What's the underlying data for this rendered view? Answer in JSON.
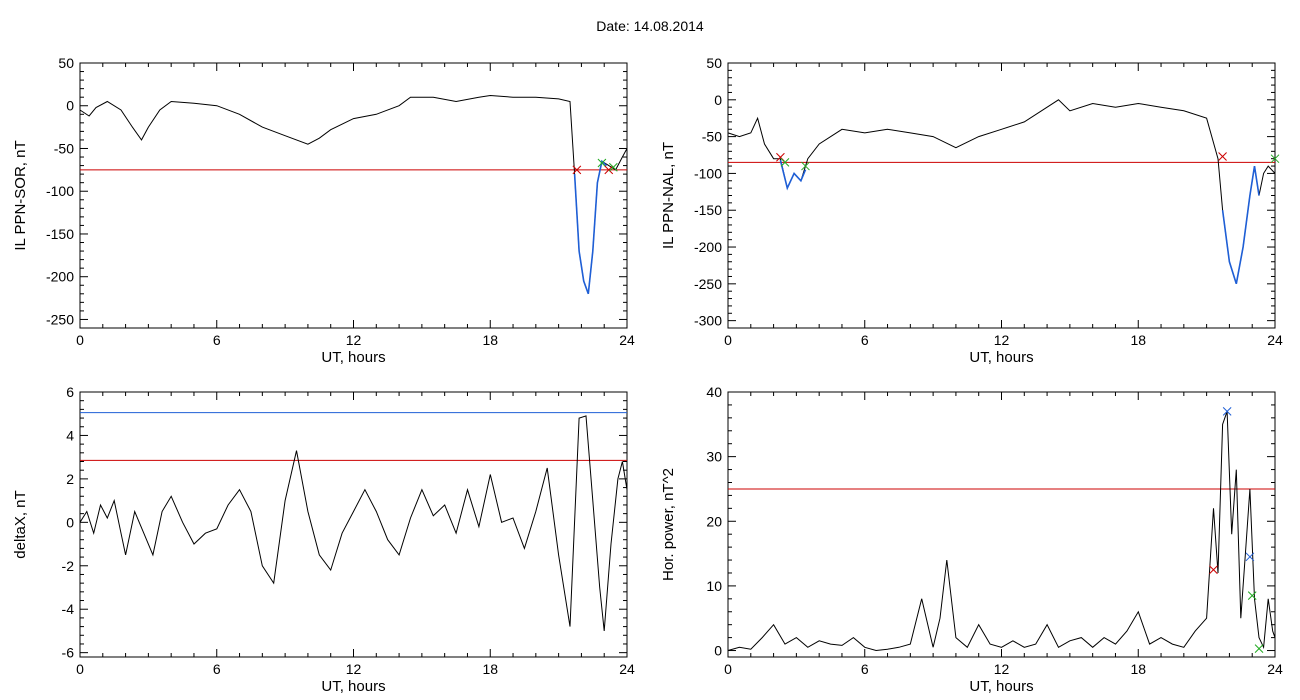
{
  "figure_title": "Date:  14.08.2014",
  "chart_data": [
    {
      "type": "line",
      "ylabel": "IL PPN-SOR, nT",
      "xlabel": "UT, hours",
      "xlim": [
        0,
        24
      ],
      "ylim": [
        -260,
        50
      ],
      "xticks": [
        0,
        6,
        12,
        18,
        24
      ],
      "yticks": [
        50,
        0,
        -50,
        -100,
        -150,
        -200,
        -250
      ],
      "threshold": {
        "value": -75,
        "color": "#cc0000"
      },
      "series": [
        {
          "color": "#000000",
          "x": [
            0,
            0.4,
            0.7,
            1.2,
            1.8,
            2.3,
            2.7,
            3.0,
            3.5,
            4.0,
            5.0,
            6.0,
            7.0,
            8.0,
            9.0,
            10.0,
            10.5,
            11.0,
            12.0,
            13.0,
            14.0,
            14.5,
            15.5,
            16.5,
            17.5,
            18.0,
            19.0,
            20.0,
            21.0,
            21.5,
            21.7,
            21.9,
            22.1,
            22.3,
            22.5,
            22.7,
            22.9,
            23.2,
            23.5,
            23.8,
            24.0
          ],
          "y": [
            -5,
            -12,
            -2,
            5,
            -5,
            -25,
            -40,
            -25,
            -5,
            5,
            3,
            0,
            -10,
            -25,
            -35,
            -45,
            -38,
            -28,
            -15,
            -10,
            0,
            10,
            10,
            5,
            10,
            12,
            10,
            10,
            8,
            5,
            -80,
            -170,
            -205,
            -220,
            -170,
            -90,
            -65,
            -70,
            -75,
            -60,
            -50
          ]
        },
        {
          "color": "#1f5fd6",
          "x": [
            21.7,
            21.9,
            22.1,
            22.3,
            22.5,
            22.7,
            22.9,
            23.1
          ],
          "y": [
            -80,
            -170,
            -205,
            -220,
            -170,
            -90,
            -65,
            -70
          ]
        }
      ],
      "markers": [
        {
          "x": 21.8,
          "y": -75,
          "color": "#cc0000"
        },
        {
          "x": 22.9,
          "y": -67,
          "color": "#22aa22"
        },
        {
          "x": 23.2,
          "y": -75,
          "color": "#cc0000"
        },
        {
          "x": 23.4,
          "y": -72,
          "color": "#22aa22"
        }
      ]
    },
    {
      "type": "line",
      "ylabel": "IL PPN-NAL, nT",
      "xlabel": "UT, hours",
      "xlim": [
        0,
        24
      ],
      "ylim": [
        -310,
        50
      ],
      "xticks": [
        0,
        6,
        12,
        18,
        24
      ],
      "yticks": [
        50,
        0,
        -50,
        -100,
        -150,
        -200,
        -250,
        -300
      ],
      "threshold": {
        "value": -85,
        "color": "#cc0000"
      },
      "series": [
        {
          "color": "#000000",
          "x": [
            0,
            0.5,
            1.0,
            1.3,
            1.6,
            2.0,
            2.3,
            2.6,
            2.9,
            3.2,
            3.5,
            4.0,
            5.0,
            6.0,
            7.0,
            8.0,
            9.0,
            10.0,
            11.0,
            12.0,
            13.0,
            14.0,
            14.5,
            15.0,
            16.0,
            17.0,
            18.0,
            19.0,
            20.0,
            21.0,
            21.5,
            21.7,
            22.0,
            22.3,
            22.6,
            22.9,
            23.1,
            23.3,
            23.5,
            23.7,
            24.0
          ],
          "y": [
            -45,
            -50,
            -45,
            -25,
            -60,
            -80,
            -80,
            -120,
            -100,
            -110,
            -80,
            -60,
            -40,
            -45,
            -40,
            -45,
            -50,
            -65,
            -50,
            -40,
            -30,
            -10,
            0,
            -15,
            -5,
            -10,
            -5,
            -10,
            -15,
            -25,
            -80,
            -150,
            -220,
            -250,
            -200,
            -130,
            -90,
            -130,
            -100,
            -90,
            -100
          ]
        },
        {
          "color": "#1f5fd6",
          "x": [
            2.3,
            2.6,
            2.9,
            3.2,
            3.4
          ],
          "y": [
            -82,
            -120,
            -100,
            -110,
            -95
          ]
        },
        {
          "color": "#1f5fd6",
          "x": [
            21.7,
            22.0,
            22.3,
            22.6,
            22.9,
            23.1,
            23.3
          ],
          "y": [
            -150,
            -220,
            -250,
            -200,
            -130,
            -90,
            -130
          ]
        }
      ],
      "markers": [
        {
          "x": 2.3,
          "y": -78,
          "color": "#cc0000"
        },
        {
          "x": 2.5,
          "y": -85,
          "color": "#22aa22"
        },
        {
          "x": 3.4,
          "y": -90,
          "color": "#22aa22"
        },
        {
          "x": 21.7,
          "y": -77,
          "color": "#cc0000"
        },
        {
          "x": 24.0,
          "y": -80,
          "color": "#22aa22"
        }
      ]
    },
    {
      "type": "line",
      "ylabel": "deltaX, nT",
      "xlabel": "UT, hours",
      "xlim": [
        0,
        24
      ],
      "ylim": [
        -6.2,
        6
      ],
      "xticks": [
        0,
        6,
        12,
        18,
        24
      ],
      "yticks": [
        6,
        4,
        2,
        0,
        -2,
        -4,
        -6
      ],
      "threshold": {
        "value": 2.85,
        "color": "#cc0000"
      },
      "threshold2": {
        "value": 5.05,
        "color": "#1f5fd6"
      },
      "series": [
        {
          "color": "#000000",
          "x": [
            0,
            0.3,
            0.6,
            0.9,
            1.2,
            1.5,
            1.8,
            2.0,
            2.4,
            2.8,
            3.2,
            3.6,
            4.0,
            4.5,
            5.0,
            5.5,
            6.0,
            6.5,
            7.0,
            7.5,
            8.0,
            8.5,
            9.0,
            9.5,
            10.0,
            10.5,
            11.0,
            11.5,
            12.0,
            12.5,
            13.0,
            13.5,
            14.0,
            14.5,
            15.0,
            15.5,
            16.0,
            16.5,
            17.0,
            17.5,
            18.0,
            18.5,
            19.0,
            19.5,
            20.0,
            20.5,
            21.0,
            21.5,
            21.9,
            22.2,
            22.5,
            22.8,
            23.0,
            23.3,
            23.6,
            23.8,
            24.0
          ],
          "y": [
            0,
            0.5,
            -0.5,
            0.8,
            0.2,
            1.0,
            -0.5,
            -1.5,
            0.5,
            -0.5,
            -1.5,
            0.5,
            1.2,
            0.0,
            -1.0,
            -0.5,
            -0.3,
            0.8,
            1.5,
            0.5,
            -2.0,
            -2.8,
            1.0,
            3.3,
            0.5,
            -1.5,
            -2.2,
            -0.5,
            0.5,
            1.5,
            0.5,
            -0.8,
            -1.5,
            0.2,
            1.5,
            0.3,
            0.8,
            -0.5,
            1.5,
            -0.2,
            2.2,
            0.0,
            0.2,
            -1.2,
            0.5,
            2.5,
            -1.5,
            -4.8,
            4.8,
            4.9,
            1.0,
            -3.0,
            -5.0,
            -1.0,
            2.0,
            2.8,
            1.5
          ]
        }
      ],
      "markers": []
    },
    {
      "type": "line",
      "ylabel": "Hor. power, nT^2",
      "xlabel": "UT, hours",
      "xlim": [
        0,
        24
      ],
      "ylim": [
        -1,
        40
      ],
      "xticks": [
        0,
        6,
        12,
        18,
        24
      ],
      "yticks": [
        40,
        30,
        20,
        10,
        0
      ],
      "threshold": {
        "value": 25,
        "color": "#cc0000"
      },
      "series": [
        {
          "color": "#000000",
          "x": [
            0,
            0.5,
            1.0,
            1.5,
            2.0,
            2.5,
            3.0,
            3.5,
            4.0,
            4.5,
            5.0,
            5.5,
            6.0,
            6.5,
            7.0,
            7.5,
            8.0,
            8.5,
            9.0,
            9.3,
            9.6,
            10.0,
            10.5,
            11.0,
            11.5,
            12.0,
            12.5,
            13.0,
            13.5,
            14.0,
            14.5,
            15.0,
            15.5,
            16.0,
            16.5,
            17.0,
            17.5,
            18.0,
            18.5,
            19.0,
            19.5,
            20.0,
            20.5,
            21.0,
            21.3,
            21.5,
            21.7,
            21.9,
            22.1,
            22.3,
            22.5,
            22.7,
            22.9,
            23.1,
            23.3,
            23.5,
            23.7,
            23.9,
            24.0
          ],
          "y": [
            0,
            0.5,
            0.2,
            2.0,
            4.0,
            1.0,
            2.0,
            0.5,
            1.5,
            1.0,
            0.8,
            2.0,
            0.5,
            0.0,
            0.2,
            0.5,
            1.0,
            8.0,
            0.5,
            5.0,
            14.0,
            2.0,
            0.5,
            4.0,
            1.0,
            0.5,
            1.5,
            0.5,
            1.0,
            4.0,
            0.5,
            1.5,
            2.0,
            0.5,
            2.0,
            1.0,
            3.0,
            6.0,
            1.0,
            2.0,
            1.0,
            0.5,
            3.0,
            5.0,
            22.0,
            12.0,
            35.0,
            37.0,
            18.0,
            28.0,
            5.0,
            15.0,
            25.0,
            8.0,
            2.0,
            0.5,
            8.0,
            3.0,
            2.0
          ]
        }
      ],
      "markers": [
        {
          "x": 21.3,
          "y": 12.5,
          "color": "#cc0000"
        },
        {
          "x": 21.9,
          "y": 37,
          "color": "#1f5fd6"
        },
        {
          "x": 22.9,
          "y": 14.5,
          "color": "#1f5fd6"
        },
        {
          "x": 23.0,
          "y": 8.5,
          "color": "#22aa22"
        },
        {
          "x": 23.3,
          "y": 0.3,
          "color": "#22aa22"
        }
      ]
    }
  ]
}
